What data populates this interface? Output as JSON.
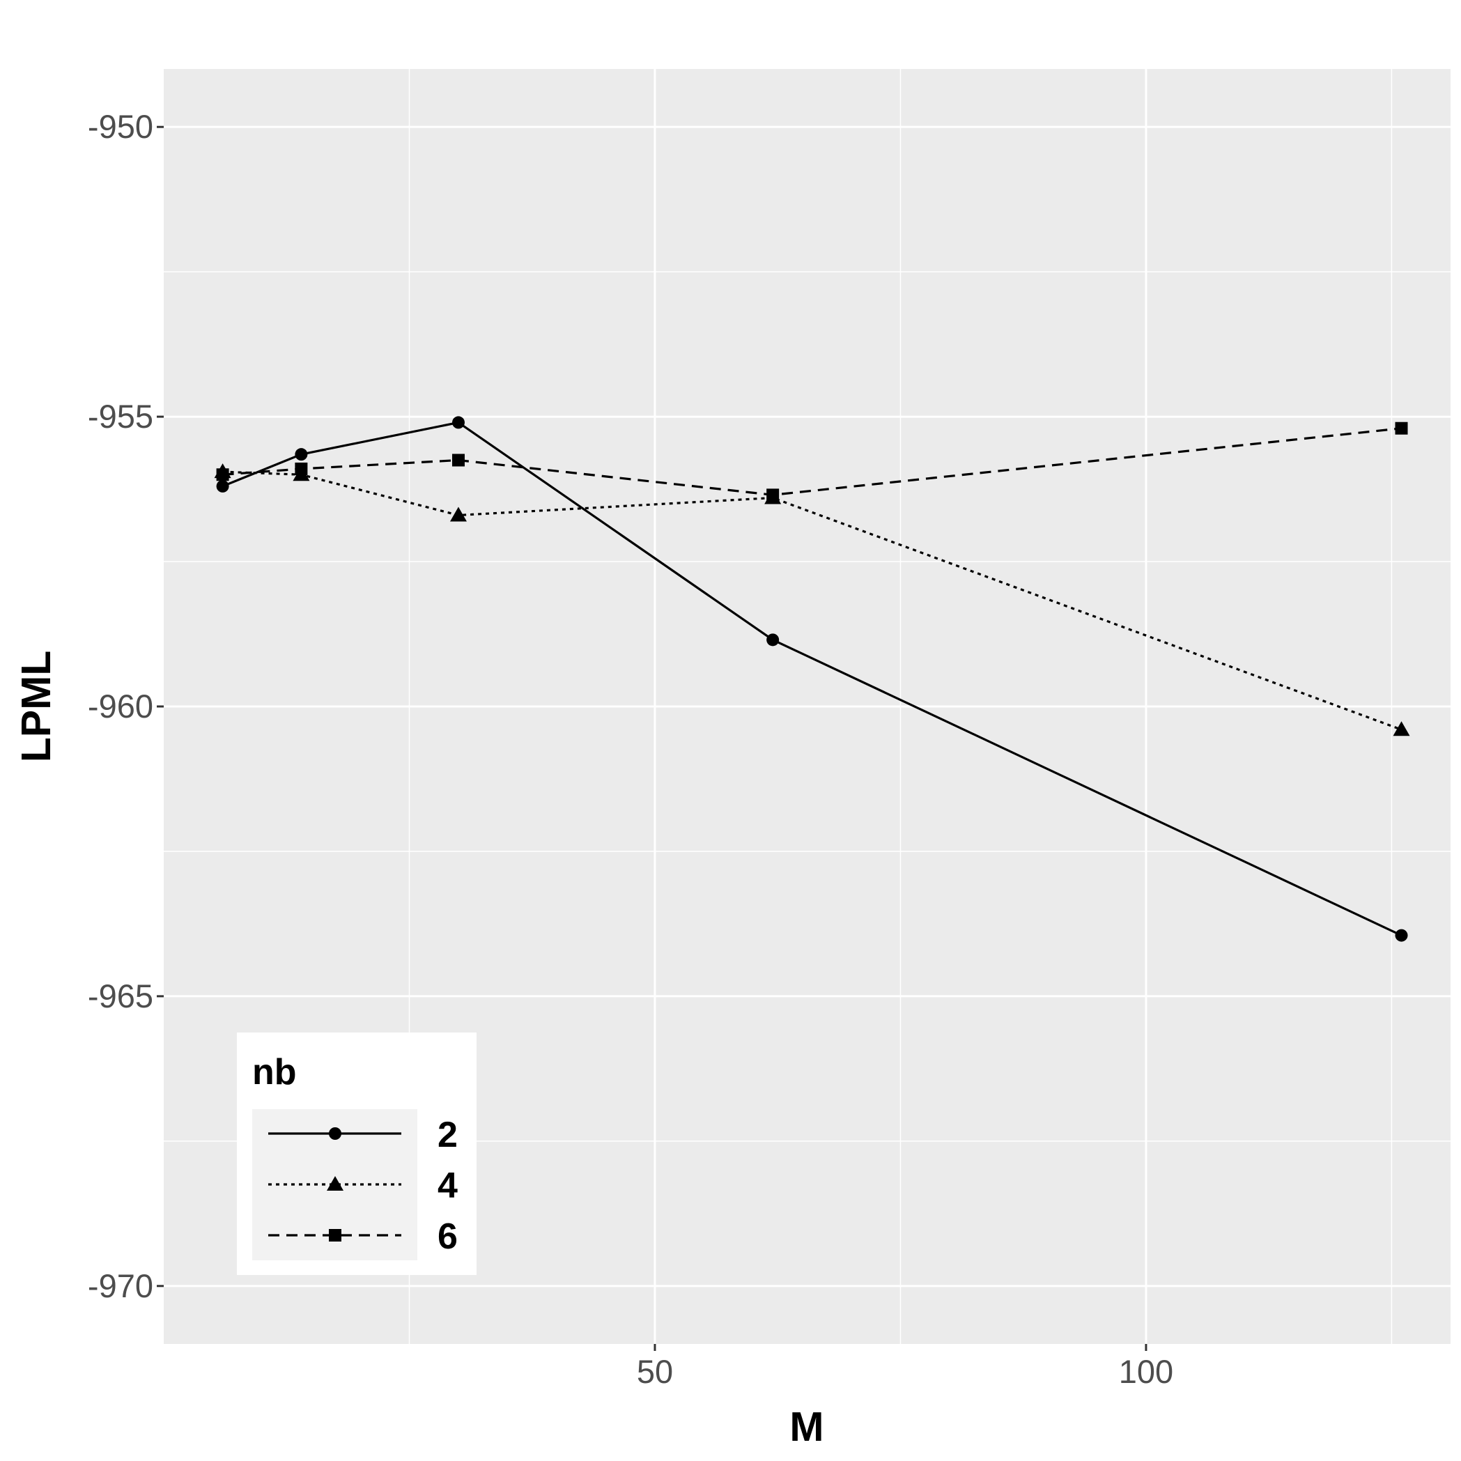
{
  "chart_data": {
    "type": "line",
    "xlabel": "M",
    "ylabel": "LPML",
    "xlim": [
      0,
      131
    ],
    "ylim": [
      -971,
      -949
    ],
    "x_ticks": [
      50,
      100
    ],
    "x_minor_ticks": [
      25,
      75,
      125
    ],
    "y_ticks": [
      -970,
      -965,
      -960,
      -955,
      -950
    ],
    "y_minor_ticks": [
      -967.5,
      -962.5,
      -957.5,
      -952.5
    ],
    "grid": true,
    "legend": {
      "title": "nb",
      "position": "bottom-left"
    },
    "x": [
      6,
      14,
      30,
      62,
      126
    ],
    "series": [
      {
        "name": "2",
        "marker": "circle",
        "dash": "solid",
        "values": [
          -956.2,
          -955.65,
          -955.1,
          -958.85,
          -963.95
        ]
      },
      {
        "name": "4",
        "marker": "triangle",
        "dash": "dotted",
        "values": [
          -955.95,
          -956.0,
          -956.7,
          -956.4,
          -960.4
        ]
      },
      {
        "name": "6",
        "marker": "square",
        "dash": "dashed",
        "values": [
          -956.0,
          -955.9,
          -955.75,
          -956.35,
          -955.2
        ]
      }
    ]
  }
}
